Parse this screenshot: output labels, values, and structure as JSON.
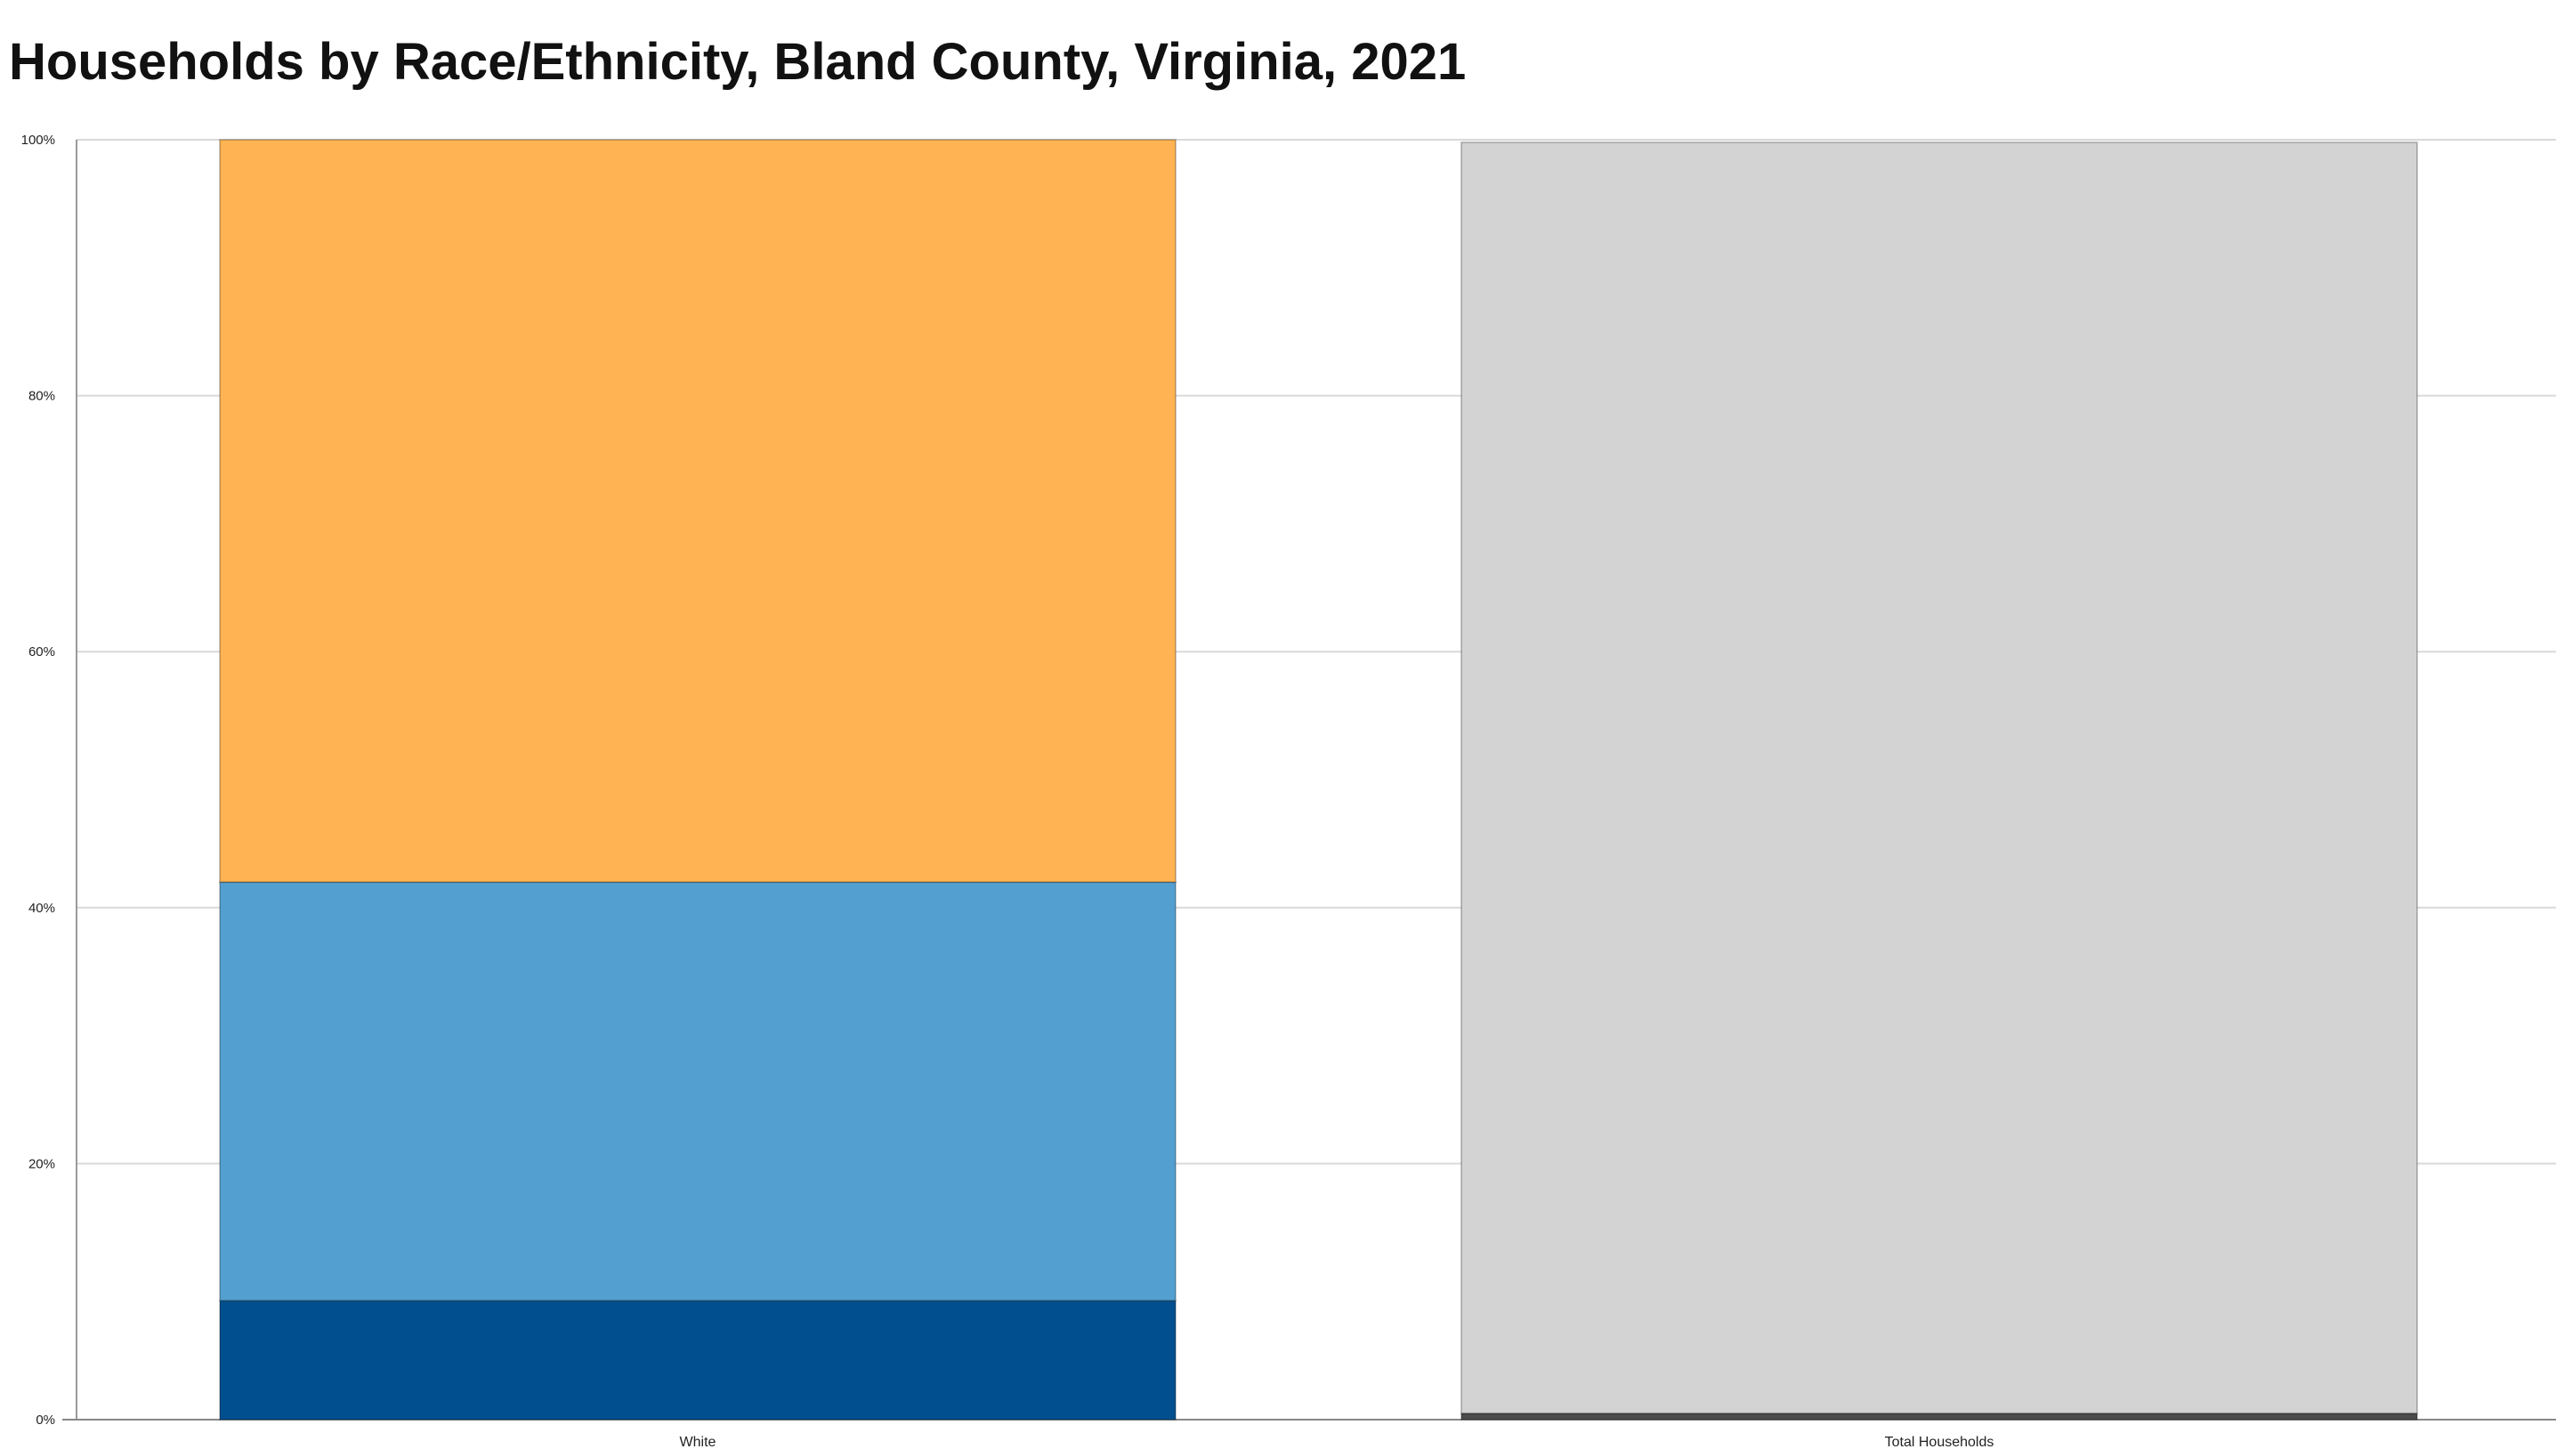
{
  "chart_data": {
    "type": "bar",
    "stacked": true,
    "title": "Households by Race/Ethnicity, Bland County, Virginia, 2021",
    "xlabel": "",
    "ylabel": "",
    "categories": [
      "White",
      "Total Households"
    ],
    "y_ticks": [
      "0%",
      "20%",
      "40%",
      "60%",
      "80%",
      "100%"
    ],
    "ylim": [
      0,
      100
    ],
    "grid": true,
    "legend": "none",
    "series": [
      {
        "values": [
          9.3,
          0.5
        ],
        "colors": [
          "#024f8f",
          "#4c4c4c"
        ]
      },
      {
        "values": [
          32.7,
          0
        ],
        "colors": [
          "#539fd0",
          "#539fd0"
        ]
      },
      {
        "values": [
          58.0,
          99.3
        ],
        "colors": [
          "#ffb352",
          "#d3d3d3"
        ]
      }
    ]
  }
}
